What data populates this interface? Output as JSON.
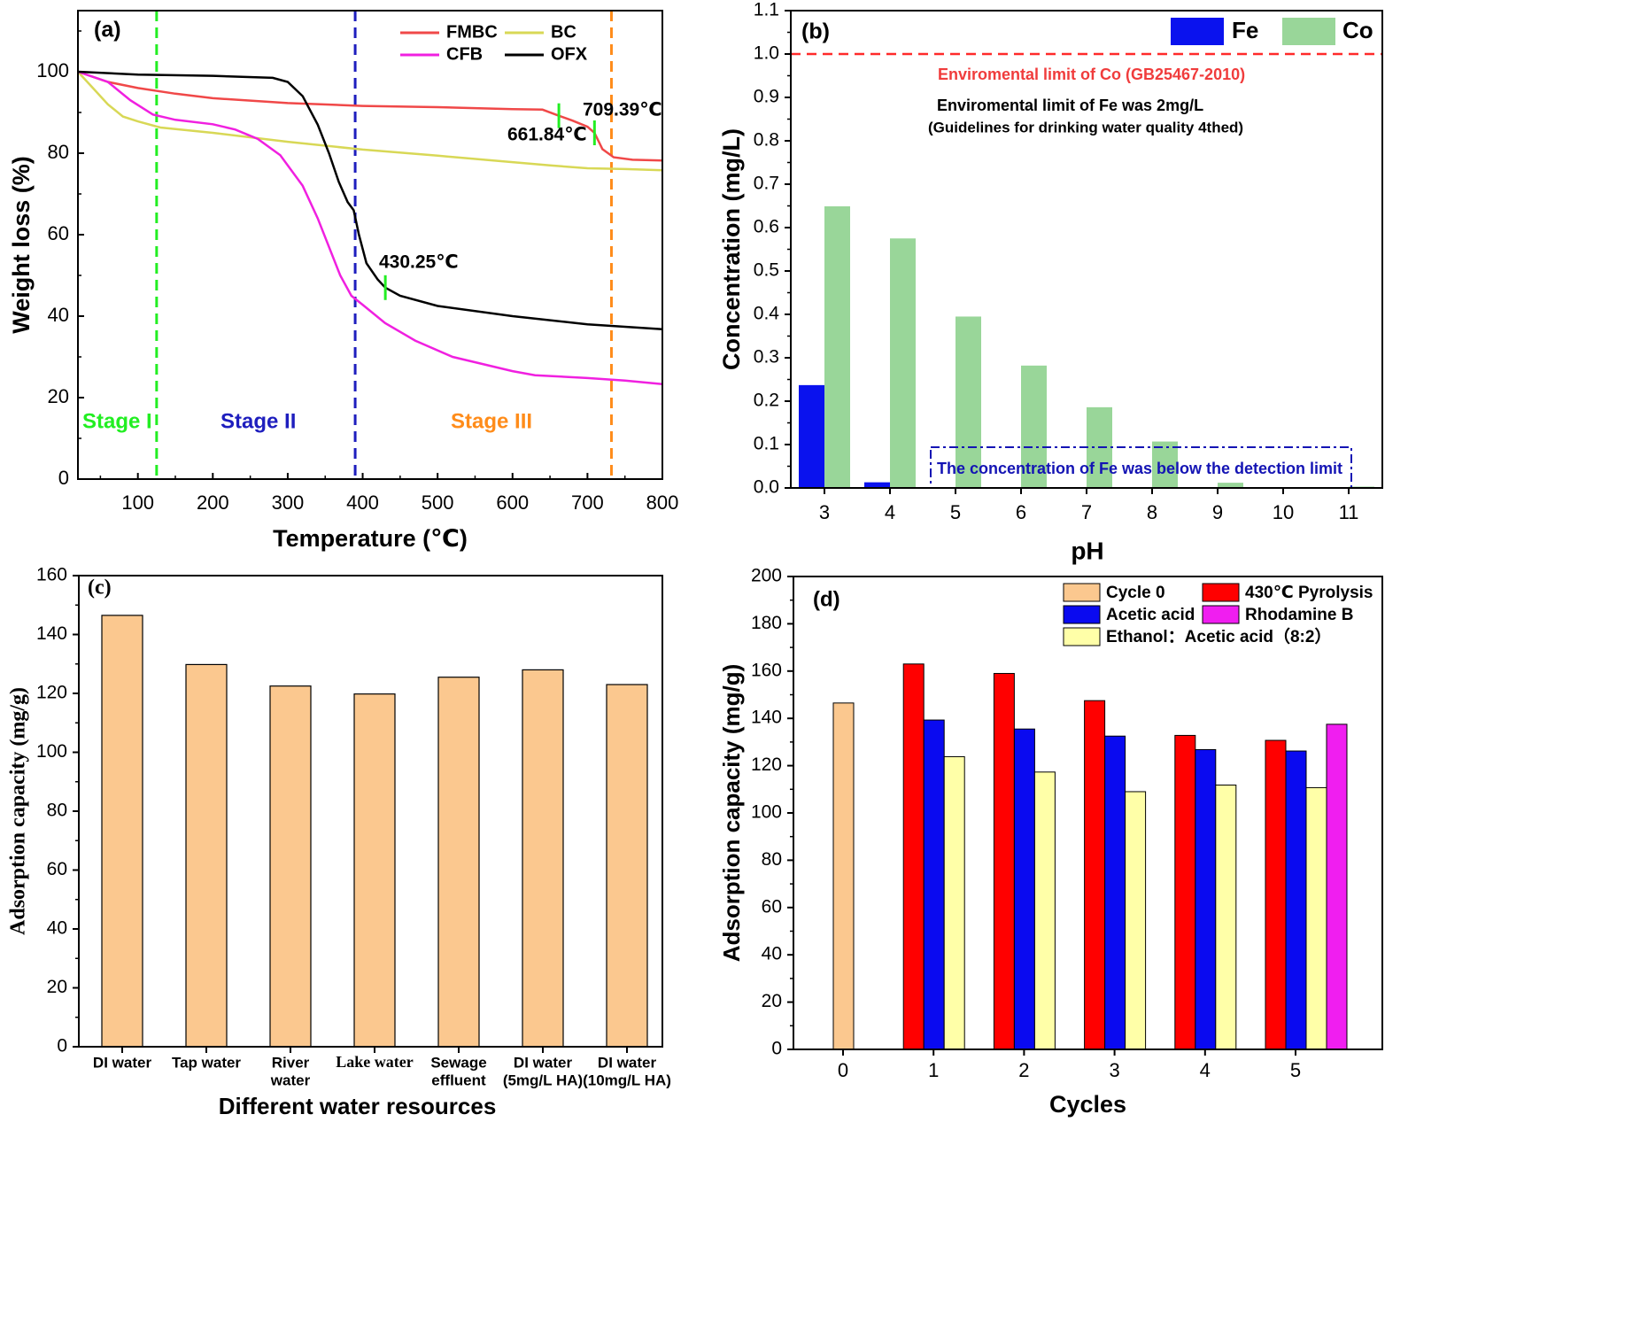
{
  "chart_data": [
    {
      "panel": "(a)",
      "type": "line",
      "xlabel": "Temperature (℃)",
      "ylabel": "Weight loss (%)",
      "xlim": [
        20,
        800
      ],
      "ylim": [
        0,
        115
      ],
      "xticks": [
        100,
        200,
        300,
        400,
        500,
        600,
        700,
        800
      ],
      "yticks": [
        0,
        20,
        40,
        60,
        80,
        100
      ],
      "legend": "top-right",
      "series": [
        {
          "name": "FMBC",
          "color": "#f04848",
          "points": [
            [
              20,
              100
            ],
            [
              60,
              97.5
            ],
            [
              100,
              96
            ],
            [
              150,
              94.6
            ],
            [
              200,
              93.5
            ],
            [
              300,
              92.3
            ],
            [
              400,
              91.6
            ],
            [
              500,
              91.3
            ],
            [
              600,
              90.8
            ],
            [
              640,
              90.7
            ],
            [
              661.84,
              89.2
            ],
            [
              680,
              88
            ],
            [
              700,
              86.5
            ],
            [
              709.39,
              85
            ],
            [
              720,
              81
            ],
            [
              735,
              79
            ],
            [
              760,
              78.4
            ],
            [
              800,
              78.2
            ]
          ]
        },
        {
          "name": "BC",
          "color": "#d8d856",
          "points": [
            [
              20,
              100
            ],
            [
              40,
              96
            ],
            [
              60,
              92
            ],
            [
              80,
              89
            ],
            [
              100,
              87.8
            ],
            [
              130,
              86.3
            ],
            [
              200,
              85
            ],
            [
              300,
              82.8
            ],
            [
              400,
              80.9
            ],
            [
              500,
              79.4
            ],
            [
              600,
              77.8
            ],
            [
              650,
              77
            ],
            [
              700,
              76.3
            ],
            [
              750,
              76.1
            ],
            [
              800,
              75.8
            ]
          ]
        },
        {
          "name": "CFB",
          "color": "#f020e0",
          "points": [
            [
              20,
              100
            ],
            [
              60,
              97.5
            ],
            [
              90,
              93
            ],
            [
              120,
              89.5
            ],
            [
              150,
              88.2
            ],
            [
              200,
              87.1
            ],
            [
              230,
              85.8
            ],
            [
              260,
              83.5
            ],
            [
              290,
              79.5
            ],
            [
              320,
              72
            ],
            [
              340,
              64
            ],
            [
              355,
              57
            ],
            [
              370,
              50
            ],
            [
              385,
              45
            ],
            [
              400,
              42.8
            ],
            [
              430,
              38.3
            ],
            [
              470,
              34
            ],
            [
              520,
              30
            ],
            [
              600,
              26.5
            ],
            [
              630,
              25.5
            ],
            [
              700,
              24.8
            ],
            [
              750,
              24.2
            ],
            [
              800,
              23.3
            ]
          ]
        },
        {
          "name": "OFX",
          "color": "#000000",
          "points": [
            [
              20,
              100
            ],
            [
              100,
              99.3
            ],
            [
              200,
              99
            ],
            [
              280,
              98.5
            ],
            [
              300,
              97.5
            ],
            [
              320,
              94
            ],
            [
              340,
              87
            ],
            [
              355,
              80
            ],
            [
              368,
              73
            ],
            [
              380,
              68
            ],
            [
              388,
              66
            ],
            [
              395,
              60
            ],
            [
              405,
              53
            ],
            [
              420,
              49
            ],
            [
              430.25,
              47
            ],
            [
              450,
              45
            ],
            [
              500,
              42.5
            ],
            [
              600,
              40
            ],
            [
              700,
              38
            ],
            [
              800,
              36.8
            ]
          ]
        }
      ],
      "markers": [
        {
          "label": "430.25℃",
          "x": 430.25,
          "y": 47
        },
        {
          "label": "661.84℃",
          "x": 661.84,
          "y": 89.2
        },
        {
          "label": "709.39℃",
          "x": 709.39,
          "y": 85
        }
      ],
      "stage_lines": [
        {
          "x": 125,
          "color": "#22ee22"
        },
        {
          "x": 390,
          "color": "#1e1ebe"
        },
        {
          "x": 732,
          "color": "#ff8c1a"
        }
      ],
      "stage_labels": [
        {
          "text": "Stage I",
          "color": "#22ee22"
        },
        {
          "text": "Stage II",
          "color": "#1e1ebe"
        },
        {
          "text": "Stage III",
          "color": "#ff8c1a"
        }
      ]
    },
    {
      "panel": "(b)",
      "type": "bar",
      "xlabel": "pH",
      "ylabel": "Concentration (mg/L)",
      "categories": [
        "3",
        "4",
        "5",
        "6",
        "7",
        "8",
        "9",
        "10",
        "11"
      ],
      "ylim": [
        0,
        1.1
      ],
      "yticks": [
        "0.0",
        "0.1",
        "0.2",
        "0.3",
        "0.4",
        "0.5",
        "0.6",
        "0.7",
        "0.8",
        "0.9",
        "1.0",
        "1.1"
      ],
      "legend": "top-right",
      "series": [
        {
          "name": "Fe",
          "color": "#0a12ee",
          "values": [
            0.237,
            0.013,
            0,
            0,
            0,
            0,
            0,
            0,
            0
          ]
        },
        {
          "name": "Co",
          "color": "#99d699",
          "values": [
            0.649,
            0.575,
            0.395,
            0.282,
            0.186,
            0.107,
            0.012,
            0,
            0.003
          ]
        }
      ],
      "limit_line": {
        "y": 1.0,
        "color": "#ff2a2a"
      },
      "annotations": [
        {
          "text": "Enviromental limit of Co (GB25467-2010)",
          "color": "#f03c3c"
        },
        {
          "text": "Enviromental limit of Fe was 2mg/L",
          "color": "#000000"
        },
        {
          "text": "(Guidelines for drinking water quality 4thed)",
          "color": "#000000"
        },
        {
          "text": "The concentration of Fe was below the detection limit",
          "color": "#1414b4"
        }
      ]
    },
    {
      "panel": "(c)",
      "type": "bar",
      "xlabel": "Different water resources",
      "ylabel": "Adsorption capacity (mg/g)",
      "categories": [
        [
          "DI water"
        ],
        [
          "Tap water"
        ],
        [
          "River",
          "water"
        ],
        [
          "Lake water"
        ],
        [
          "Sewage",
          "effluent"
        ],
        [
          "DI water",
          "(5mg/L HA)"
        ],
        [
          "DI water",
          "(10mg/L HA)"
        ]
      ],
      "values": [
        146.5,
        129.8,
        122.5,
        119.8,
        125.5,
        128,
        123
      ],
      "ylim": [
        0,
        160
      ],
      "yticks": [
        0,
        20,
        40,
        60,
        80,
        100,
        120,
        140,
        160
      ],
      "color": "#fbc88f"
    },
    {
      "panel": "(d)",
      "type": "bar",
      "xlabel": "Cycles",
      "ylabel": "Adsorption capacity (mg/g)",
      "categories": [
        "0",
        "1",
        "2",
        "3",
        "4",
        "5"
      ],
      "ylim": [
        0,
        200
      ],
      "yticks": [
        0,
        20,
        40,
        60,
        80,
        100,
        120,
        140,
        160,
        180,
        200
      ],
      "legend": "top-right",
      "series": [
        {
          "name": "Cycle 0",
          "color": "#fbc88f",
          "values": [
            146.5,
            null,
            null,
            null,
            null,
            null
          ]
        },
        {
          "name": "430℃ Pyrolysis",
          "color": "#ff0000",
          "values": [
            null,
            163,
            159,
            147.5,
            132.8,
            130.7
          ]
        },
        {
          "name": "Acetic acid",
          "color": "#0a0af0",
          "values": [
            null,
            139.3,
            135.5,
            132.5,
            126.8,
            126.2
          ]
        },
        {
          "name": "Rhodamine B",
          "color": "#f01ef0",
          "values": [
            null,
            null,
            null,
            null,
            null,
            137.5
          ]
        },
        {
          "name": "Ethanol：Acetic acid（8:2）",
          "color": "#ffffa8",
          "values": [
            null,
            123.8,
            117.3,
            109,
            111.8,
            110.7
          ]
        }
      ]
    }
  ]
}
